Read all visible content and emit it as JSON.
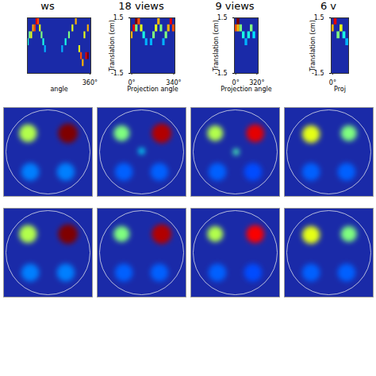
{
  "chart_data": [
    {
      "type": "heatmap",
      "title": "ws",
      "xlabel": "angle",
      "xlim": [
        -5,
        365
      ],
      "xticks": [
        {
          "value": 360,
          "label": "360°"
        }
      ],
      "ylim": [
        -1.5,
        1.5
      ],
      "zlim": [
        0,
        1
      ],
      "cells": [
        [
          0,
          0.1875,
          0.4
        ],
        [
          10,
          0.5625,
          0.5
        ],
        [
          20,
          0.5625,
          0.6
        ],
        [
          30,
          0.9375,
          0.7
        ],
        [
          40,
          0.9375,
          0.8
        ],
        [
          50,
          1.3125,
          0.9
        ],
        [
          60,
          1.3125,
          0.8
        ],
        [
          70,
          0.9375,
          0.6
        ],
        [
          80,
          0.5625,
          0.5
        ],
        [
          90,
          0.1875,
          0.4
        ],
        [
          100,
          -0.1875,
          0.3
        ],
        [
          200,
          -0.1875,
          0.3
        ],
        [
          220,
          0.1875,
          0.4
        ],
        [
          240,
          0.5625,
          0.5
        ],
        [
          260,
          0.9375,
          0.6
        ],
        [
          280,
          1.3125,
          0.7
        ],
        [
          300,
          -0.1875,
          0.6
        ],
        [
          310,
          -0.5625,
          0.8
        ],
        [
          320,
          -0.9375,
          0.7
        ],
        [
          330,
          0.5625,
          0.6
        ],
        [
          340,
          -0.5625,
          0.9
        ],
        [
          350,
          -0.5625,
          1.0
        ],
        [
          350,
          0.9375,
          0.7
        ]
      ]
    },
    {
      "type": "heatmap",
      "title": "18 views",
      "xlabel": "Projection angle",
      "ylabel": "Translation (cm)",
      "xlim": [
        -10,
        350
      ],
      "xticks": [
        {
          "value": 0,
          "label": "0°"
        },
        {
          "value": 340,
          "label": "340°"
        }
      ],
      "ylim": [
        -1.5,
        1.5
      ],
      "yticks": [
        -1.5,
        1.5
      ],
      "zlim": [
        0,
        1
      ],
      "cells": [
        [
          0,
          0.5625,
          0.7
        ],
        [
          20,
          0.9375,
          0.9
        ],
        [
          40,
          1.3125,
          1.0
        ],
        [
          40,
          0.9375,
          0.5
        ],
        [
          60,
          1.3125,
          0.8
        ],
        [
          80,
          0.9375,
          0.6
        ],
        [
          100,
          0.5625,
          0.4
        ],
        [
          120,
          0.1875,
          0.3
        ],
        [
          160,
          0.1875,
          0.3
        ],
        [
          180,
          0.5625,
          0.5
        ],
        [
          200,
          0.9375,
          0.6
        ],
        [
          220,
          1.3125,
          0.7
        ],
        [
          240,
          0.9375,
          0.5
        ],
        [
          260,
          0.1875,
          0.3
        ],
        [
          280,
          0.5625,
          0.5
        ],
        [
          300,
          0.9375,
          0.7
        ],
        [
          320,
          1.3125,
          0.9
        ],
        [
          340,
          0.9375,
          0.8
        ]
      ]
    },
    {
      "type": "heatmap",
      "title": "9 views",
      "xlabel": "Projection angle",
      "ylabel": "Translation (cm)",
      "xlim": [
        -20,
        340
      ],
      "xticks": [
        {
          "value": 0,
          "label": "0°"
        },
        {
          "value": 320,
          "label": "320°"
        }
      ],
      "ylim": [
        -1.5,
        1.5
      ],
      "yticks": [
        -1.5,
        1.5
      ],
      "zlim": [
        0,
        1
      ],
      "cells": [
        [
          0,
          0.9375,
          0.8
        ],
        [
          40,
          1.3125,
          1.0
        ],
        [
          40,
          0.9375,
          0.7
        ],
        [
          80,
          0.9375,
          0.5
        ],
        [
          120,
          0.5625,
          0.4
        ],
        [
          160,
          0.1875,
          0.3
        ],
        [
          200,
          0.5625,
          0.4
        ],
        [
          240,
          0.9375,
          0.5
        ],
        [
          280,
          0.5625,
          0.35
        ]
      ]
    },
    {
      "type": "heatmap",
      "title": "6 v",
      "xlabel": "Proj",
      "ylabel": "Translation (cm)",
      "xlim": [
        -30,
        330
      ],
      "xticks": [
        {
          "value": 0,
          "label": "0°"
        }
      ],
      "ylim": [
        -1.5,
        1.5
      ],
      "yticks": [
        -1.5,
        1.5
      ],
      "zlim": [
        0,
        1
      ],
      "cells": [
        [
          0,
          0.9375,
          0.7
        ],
        [
          60,
          1.3125,
          0.9
        ],
        [
          120,
          0.5625,
          0.5
        ],
        [
          180,
          0.9375,
          0.6
        ],
        [
          240,
          0.5625,
          0.4
        ],
        [
          300,
          0.1875,
          0.3
        ]
      ]
    },
    {
      "type": "image",
      "xlim": [
        -1,
        1
      ],
      "ylim": [
        -1,
        1
      ],
      "zlim": [
        0,
        1
      ],
      "tick_labels": false,
      "spots": [
        {
          "x": -0.45,
          "y": 0.42,
          "value": 0.55,
          "r": 0.2
        },
        {
          "x": 0.45,
          "y": 0.42,
          "value": 1.0,
          "r": 0.22
        },
        {
          "x": -0.4,
          "y": -0.45,
          "value": 0.25,
          "r": 0.2
        },
        {
          "x": 0.4,
          "y": -0.45,
          "value": 0.25,
          "r": 0.2
        }
      ]
    },
    {
      "type": "image",
      "xlim": [
        -1,
        1
      ],
      "ylim": [
        -1,
        1
      ],
      "zlim": [
        0,
        1
      ],
      "tick_labels": false,
      "spots": [
        {
          "x": -0.45,
          "y": 0.42,
          "value": 0.5,
          "r": 0.18
        },
        {
          "x": 0.45,
          "y": 0.42,
          "value": 0.95,
          "r": 0.22
        },
        {
          "x": 0,
          "y": 0.02,
          "value": 0.35,
          "r": 0.07
        },
        {
          "x": -0.4,
          "y": -0.45,
          "value": 0.22,
          "r": 0.2
        },
        {
          "x": 0.4,
          "y": -0.45,
          "value": 0.22,
          "r": 0.2
        }
      ]
    },
    {
      "type": "image",
      "xlim": [
        -1,
        1
      ],
      "ylim": [
        -1,
        1
      ],
      "zlim": [
        0,
        1
      ],
      "tick_labels": false,
      "spots": [
        {
          "x": -0.45,
          "y": 0.42,
          "value": 0.55,
          "r": 0.18
        },
        {
          "x": 0.45,
          "y": 0.42,
          "value": 0.9,
          "r": 0.2
        },
        {
          "x": 0.02,
          "y": 0,
          "value": 0.45,
          "r": 0.07
        },
        {
          "x": -0.4,
          "y": -0.45,
          "value": 0.22,
          "r": 0.2
        },
        {
          "x": 0.4,
          "y": -0.45,
          "value": 0.2,
          "r": 0.2
        }
      ]
    },
    {
      "type": "image",
      "xlim": [
        -1,
        1
      ],
      "ylim": [
        -1,
        1
      ],
      "zlim": [
        0,
        1
      ],
      "tick_labels": false,
      "spots": [
        {
          "x": -0.4,
          "y": 0.4,
          "value": 0.6,
          "r": 0.2
        },
        {
          "x": 0.45,
          "y": 0.42,
          "value": 0.5,
          "r": 0.18
        },
        {
          "x": -0.4,
          "y": -0.45,
          "value": 0.22,
          "r": 0.2
        },
        {
          "x": 0.4,
          "y": -0.45,
          "value": 0.22,
          "r": 0.2
        }
      ]
    },
    {
      "type": "image",
      "xlim": [
        -1,
        1
      ],
      "ylim": [
        -1,
        1
      ],
      "zlim": [
        0,
        1
      ],
      "tick_labels": false,
      "spots": [
        {
          "x": -0.45,
          "y": 0.42,
          "value": 0.55,
          "r": 0.2
        },
        {
          "x": 0.45,
          "y": 0.42,
          "value": 1.0,
          "r": 0.22
        },
        {
          "x": -0.4,
          "y": -0.45,
          "value": 0.25,
          "r": 0.2
        },
        {
          "x": 0.4,
          "y": -0.45,
          "value": 0.25,
          "r": 0.2
        }
      ]
    },
    {
      "type": "image",
      "xlim": [
        -1,
        1
      ],
      "ylim": [
        -1,
        1
      ],
      "zlim": [
        0,
        1
      ],
      "tick_labels": false,
      "spots": [
        {
          "x": -0.45,
          "y": 0.42,
          "value": 0.5,
          "r": 0.18
        },
        {
          "x": 0.45,
          "y": 0.42,
          "value": 0.95,
          "r": 0.22
        },
        {
          "x": -0.4,
          "y": -0.45,
          "value": 0.22,
          "r": 0.2
        },
        {
          "x": 0.4,
          "y": -0.45,
          "value": 0.22,
          "r": 0.2
        }
      ]
    },
    {
      "type": "image",
      "xlim": [
        -1,
        1
      ],
      "ylim": [
        -1,
        1
      ],
      "zlim": [
        0,
        1
      ],
      "tick_labels": false,
      "spots": [
        {
          "x": -0.45,
          "y": 0.42,
          "value": 0.55,
          "r": 0.18
        },
        {
          "x": 0.45,
          "y": 0.42,
          "value": 0.88,
          "r": 0.2
        },
        {
          "x": -0.4,
          "y": -0.45,
          "value": 0.22,
          "r": 0.2
        },
        {
          "x": 0.4,
          "y": -0.45,
          "value": 0.2,
          "r": 0.2
        }
      ]
    },
    {
      "type": "image",
      "xlim": [
        -1,
        1
      ],
      "ylim": [
        -1,
        1
      ],
      "zlim": [
        0,
        1
      ],
      "tick_labels": false,
      "spots": [
        {
          "x": -0.4,
          "y": 0.4,
          "value": 0.6,
          "r": 0.2
        },
        {
          "x": 0.45,
          "y": 0.42,
          "value": 0.5,
          "r": 0.18
        },
        {
          "x": -0.4,
          "y": -0.45,
          "value": 0.22,
          "r": 0.2
        },
        {
          "x": 0.4,
          "y": -0.45,
          "value": 0.22,
          "r": 0.2
        }
      ]
    }
  ]
}
